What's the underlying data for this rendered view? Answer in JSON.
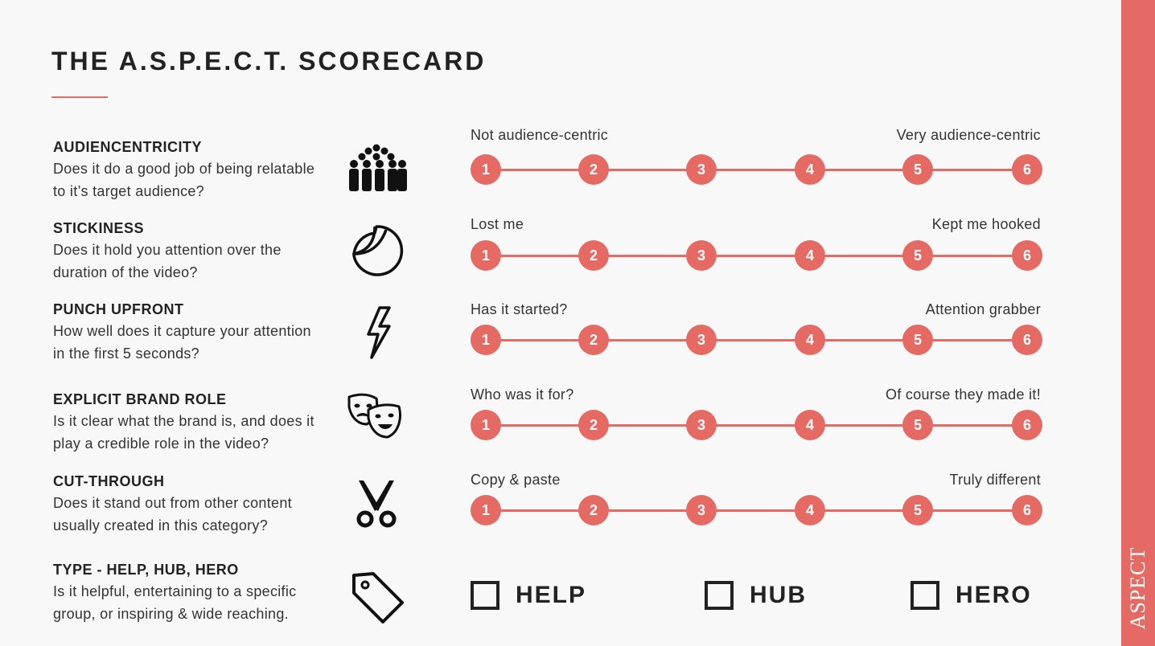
{
  "title": "THE A.S.P.E.C.T. SCORECARD",
  "side_label": "ASPECT",
  "colors": {
    "accent": "#e56a64",
    "text": "#222222",
    "background": "#f8f8f8"
  },
  "criteria": [
    {
      "name": "AUDIENCENTRICITY",
      "description": "Does it do a good job of being relatable to it’s target audience?",
      "icon": "audience-crowd-icon",
      "low_label": "Not audience-centric",
      "high_label": "Very audience-centric",
      "scale": [
        "1",
        "2",
        "3",
        "4",
        "5",
        "6"
      ]
    },
    {
      "name": "STICKINESS",
      "description": "Does it hold you attention over the duration of the video?",
      "icon": "sticker-icon",
      "low_label": "Lost me",
      "high_label": "Kept me hooked",
      "scale": [
        "1",
        "2",
        "3",
        "4",
        "5",
        "6"
      ]
    },
    {
      "name": "PUNCH UPFRONT",
      "description": "How well does it capture your attention in the first 5 seconds?",
      "icon": "lightning-bolt-icon",
      "low_label": "Has it started?",
      "high_label": "Attention grabber",
      "scale": [
        "1",
        "2",
        "3",
        "4",
        "5",
        "6"
      ]
    },
    {
      "name": "EXPLICIT BRAND ROLE",
      "description": "Is it clear what the brand is, and does it play a credible role in the video?",
      "icon": "theater-masks-icon",
      "low_label": "Who was it for?",
      "high_label": "Of course they made it!",
      "scale": [
        "1",
        "2",
        "3",
        "4",
        "5",
        "6"
      ]
    },
    {
      "name": "CUT-THROUGH",
      "description": "Does it stand out from other content usually created in this category?",
      "icon": "scissors-icon",
      "low_label": "Copy & paste",
      "high_label": "Truly different",
      "scale": [
        "1",
        "2",
        "3",
        "4",
        "5",
        "6"
      ]
    }
  ],
  "type_section": {
    "name": "TYPE - HELP, HUB, HERO",
    "description": "Is it helpful, entertaining to a specific group, or inspiring & wide reaching.",
    "icon": "tag-icon",
    "options": [
      "HELP",
      "HUB",
      "HERO"
    ]
  }
}
